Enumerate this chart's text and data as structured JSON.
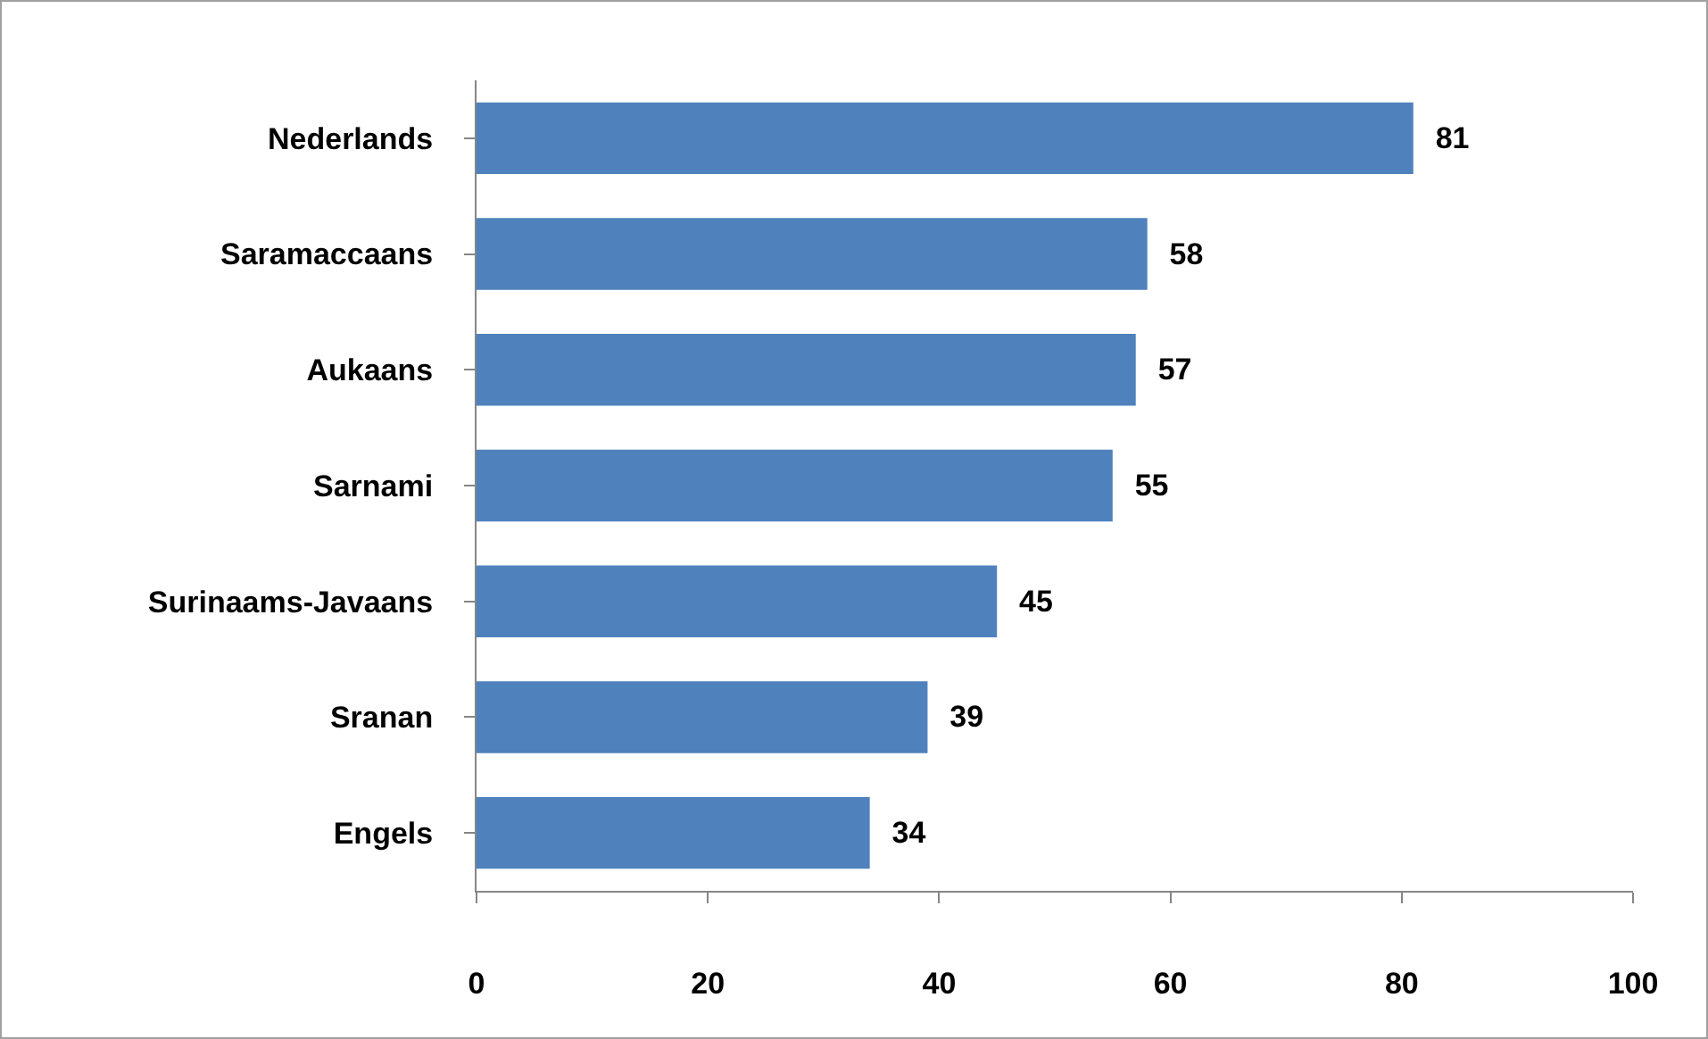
{
  "chart_data": {
    "type": "bar",
    "orientation": "horizontal",
    "categories": [
      "Nederlands",
      "Saramaccaans",
      "Aukaans",
      "Sarnami",
      "Surinaams-Javaans",
      "Sranan",
      "Engels"
    ],
    "values": [
      81,
      58,
      57,
      55,
      45,
      39,
      34
    ],
    "color": "#4f81bd",
    "data_labels": true,
    "xlim": [
      0,
      100
    ],
    "xticks": [
      0,
      20,
      40,
      60,
      80,
      100
    ]
  }
}
